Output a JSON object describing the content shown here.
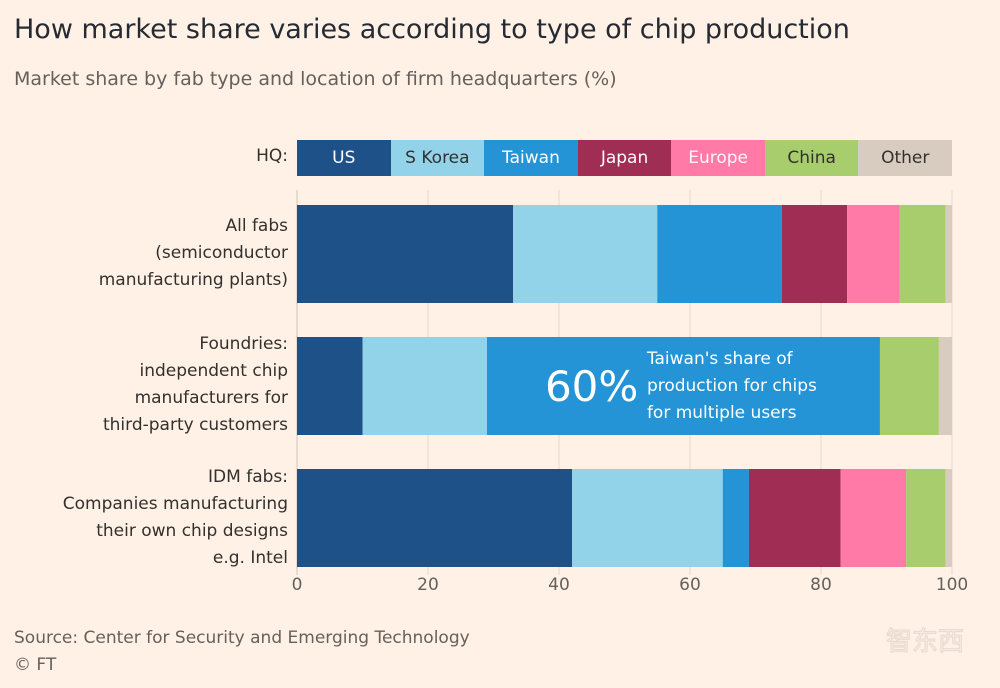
{
  "title": "How market share varies according to type of chip production",
  "subtitle": "Market share by fab type and location of firm headquarters (%)",
  "source": "Source: Center for Security and Emerging Technology",
  "copyright": "© FT",
  "watermark_text": "智东西",
  "legend_label": "HQ:",
  "colors": {
    "US": "#1f5189",
    "S Korea": "#93d3ea",
    "Taiwan": "#2494d6",
    "Japan": "#a02d54",
    "Europe": "#ff7aa7",
    "China": "#a7cd6d",
    "Other": "#d8ccc0",
    "legend_text_dark": "#ffffff",
    "legend_text_light": "#33302e"
  },
  "chart_data": {
    "type": "bar",
    "orientation": "horizontal",
    "stacked": true,
    "title": "How market share varies according to type of chip production",
    "subtitle": "Market share by fab type and location of firm headquarters (%)",
    "xlim": [
      0,
      100
    ],
    "xticks": [
      0,
      20,
      40,
      60,
      80,
      100
    ],
    "grid": true,
    "legend_position": "top",
    "categories": [
      {
        "key": "all",
        "lines": [
          "All fabs",
          "(semiconductor",
          "manufacturing plants)"
        ]
      },
      {
        "key": "foundries",
        "lines": [
          "Foundries:",
          "independent chip",
          "manufacturers for",
          "third-party customers"
        ]
      },
      {
        "key": "idm",
        "lines": [
          "IDM fabs:",
          "Companies manufacturing",
          "their own chip designs",
          "e.g. Intel"
        ]
      }
    ],
    "series": [
      {
        "name": "US",
        "values": [
          33,
          10,
          42
        ]
      },
      {
        "name": "S Korea",
        "values": [
          22,
          19,
          23
        ]
      },
      {
        "name": "Taiwan",
        "values": [
          19,
          60,
          4
        ]
      },
      {
        "name": "Japan",
        "values": [
          10,
          0,
          14
        ]
      },
      {
        "name": "Europe",
        "values": [
          8,
          0,
          10
        ]
      },
      {
        "name": "China",
        "values": [
          7,
          9,
          6
        ]
      },
      {
        "name": "Other",
        "values": [
          1,
          2,
          1
        ]
      }
    ],
    "annotation": {
      "category_index": 1,
      "series": "Taiwan",
      "value_text": "60%",
      "lines": [
        "Taiwan's share of",
        "production for chips",
        "for multiple users"
      ]
    }
  }
}
